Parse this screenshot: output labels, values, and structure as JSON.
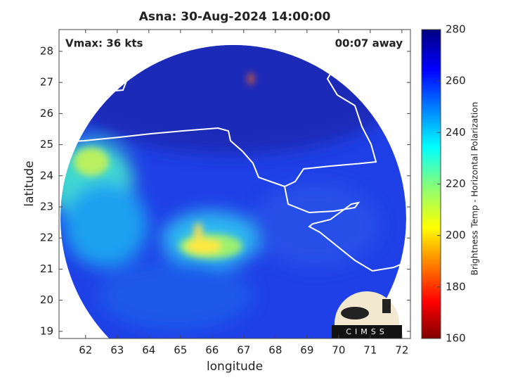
{
  "chart_data": {
    "type": "image",
    "title": "Asna: 30-Aug-2024 14:00:00",
    "annotations": [
      "Vmax: 36 kts",
      "00:07 away"
    ],
    "xlabel": "longitude",
    "ylabel": "latitude",
    "xlim": [
      61.16,
      72.27
    ],
    "xticks": [
      62,
      63,
      64,
      65,
      66,
      67,
      68,
      69,
      70,
      71,
      72
    ],
    "ylim": [
      18.77,
      28.7
    ],
    "yticks": [
      19,
      20,
      21,
      22,
      23,
      24,
      25,
      26,
      27,
      28
    ],
    "colorbar": {
      "label": "Brightness Temp - Horizontal Polarization",
      "lim": [
        160,
        280
      ],
      "ticks": [
        160,
        180,
        200,
        220,
        240,
        260,
        280
      ]
    },
    "logo": "CIMSS"
  }
}
